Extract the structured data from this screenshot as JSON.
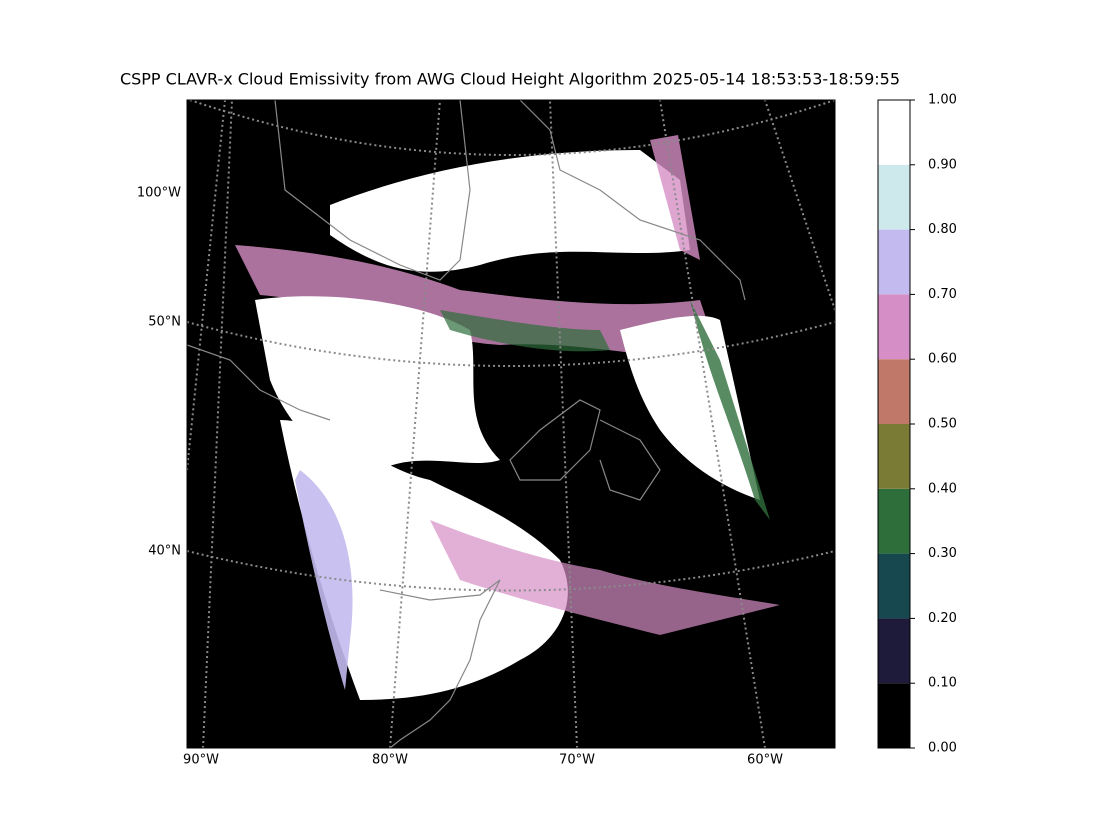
{
  "title": "CSPP CLAVR-x Cloud Emissivity from AWG Cloud Height Algorithm 2025-05-14 18:53:53-18:59:55",
  "map": {
    "lon_labels": [
      "90°W",
      "80°W",
      "70°W",
      "60°W"
    ],
    "lat_labels": [
      "100°W",
      "50°N",
      "40°N"
    ]
  },
  "colorbar": {
    "lim": [
      0,
      1
    ],
    "ticks": [
      {
        "value": 0,
        "label": "0.00"
      },
      {
        "value": 0.1,
        "label": "0.10"
      },
      {
        "value": 0.2,
        "label": "0.20"
      },
      {
        "value": 0.3,
        "label": "0.30"
      },
      {
        "value": 0.4,
        "label": "0.40"
      },
      {
        "value": 0.5,
        "label": "0.50"
      },
      {
        "value": 0.6,
        "label": "0.60"
      },
      {
        "value": 0.7,
        "label": "0.70"
      },
      {
        "value": 0.8,
        "label": "0.80"
      },
      {
        "value": 0.9,
        "label": "0.90"
      },
      {
        "value": 1,
        "label": "1.00"
      }
    ],
    "colors": [
      "#000000",
      "#1e1a3a",
      "#17474f",
      "#2e6e3b",
      "#7a7c36",
      "#c07968",
      "#d68ec6",
      "#c3bbef",
      "#cde9ec",
      "#ffffff"
    ]
  }
}
